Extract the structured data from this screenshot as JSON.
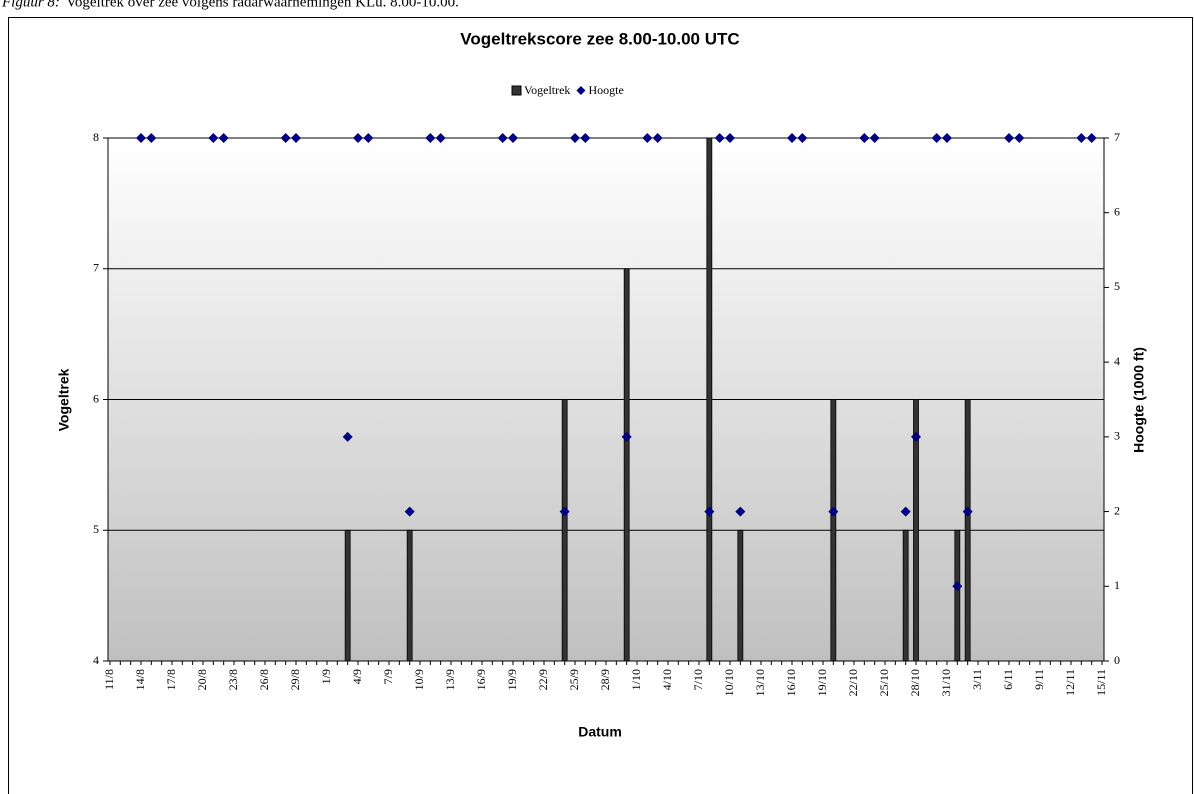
{
  "caption_label": "Figuur 8:",
  "caption": "Vogeltrek over zee volgens radarwaarnemingen KLu. 8.00-10.00.",
  "chart_data": {
    "type": "bar",
    "title": "Vogeltrekscore zee 8.00-10.00 UTC",
    "x_label": "Datum",
    "y_label": "Vogeltrek",
    "y2_label": "Hoogte (1000 ft)",
    "categories": [
      "11/8",
      null,
      null,
      "14/8",
      null,
      null,
      "17/8",
      null,
      null,
      "20/8",
      null,
      null,
      "23/8",
      null,
      null,
      "26/8",
      null,
      null,
      "29/8",
      null,
      null,
      "1/9",
      null,
      null,
      "4/9",
      null,
      null,
      "7/9",
      null,
      null,
      "10/9",
      null,
      null,
      "13/9",
      null,
      null,
      "16/9",
      null,
      null,
      "19/9",
      null,
      null,
      "22/9",
      null,
      null,
      "25/9",
      null,
      null,
      "28/9",
      null,
      null,
      "1/10",
      null,
      null,
      "4/10",
      null,
      null,
      "7/10",
      null,
      null,
      "10/10",
      null,
      null,
      "13/10",
      null,
      null,
      "16/10",
      null,
      null,
      "19/10",
      null,
      null,
      "22/10",
      null,
      null,
      "25/10",
      null,
      null,
      "28/10",
      null,
      null,
      "31/10",
      null,
      null,
      "3/11",
      null,
      null,
      "6/11",
      null,
      null,
      "9/11",
      null,
      null,
      "12/11",
      null,
      null,
      "15/11"
    ],
    "series": [
      {
        "name": "Vogeltrek",
        "type": "bar",
        "color": "#333333",
        "values": [
          null,
          null,
          null,
          null,
          null,
          null,
          null,
          null,
          null,
          null,
          null,
          null,
          null,
          null,
          null,
          null,
          null,
          null,
          null,
          null,
          null,
          null,
          null,
          5,
          null,
          null,
          null,
          null,
          null,
          5,
          null,
          null,
          null,
          null,
          null,
          null,
          null,
          null,
          null,
          null,
          null,
          null,
          null,
          null,
          6,
          null,
          null,
          null,
          null,
          null,
          7,
          null,
          null,
          null,
          null,
          null,
          null,
          null,
          8,
          null,
          null,
          5,
          null,
          null,
          null,
          null,
          null,
          null,
          null,
          null,
          6,
          null,
          null,
          null,
          null,
          null,
          null,
          5,
          6,
          null,
          null,
          null,
          5,
          6,
          null,
          null,
          null,
          null,
          null,
          null,
          null,
          null,
          null,
          null,
          null,
          null,
          null
        ]
      },
      {
        "name": "Hoogte",
        "type": "scatter",
        "axis": "y2",
        "color": "#000080",
        "values": [
          null,
          null,
          null,
          7,
          7,
          null,
          null,
          null,
          null,
          null,
          7,
          7,
          null,
          null,
          null,
          null,
          null,
          7,
          7,
          null,
          null,
          null,
          null,
          3,
          7,
          7,
          null,
          null,
          null,
          2,
          null,
          7,
          7,
          null,
          null,
          null,
          null,
          null,
          7,
          7,
          null,
          null,
          null,
          null,
          2,
          7,
          7,
          null,
          null,
          null,
          3,
          null,
          7,
          7,
          null,
          null,
          null,
          null,
          2,
          7,
          7,
          2,
          null,
          null,
          null,
          null,
          7,
          7,
          null,
          null,
          2,
          null,
          null,
          7,
          7,
          null,
          null,
          2,
          3,
          null,
          7,
          7,
          1,
          2,
          null,
          null,
          null,
          7,
          7,
          null,
          null,
          null,
          null,
          null,
          7,
          7,
          null
        ]
      }
    ],
    "ylim": [
      4,
      8
    ],
    "yticks": [
      4,
      5,
      6,
      7,
      8
    ],
    "y2lim": [
      0,
      7
    ],
    "y2ticks": [
      0,
      1,
      2,
      3,
      4,
      5,
      6,
      7
    ],
    "grid": true
  }
}
